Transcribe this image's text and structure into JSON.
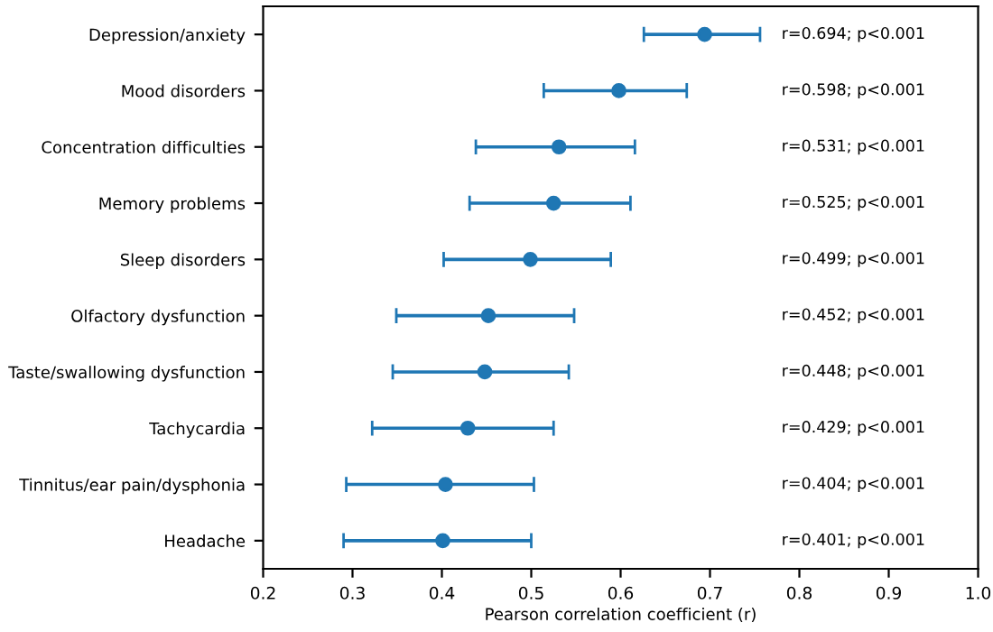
{
  "chart_data": {
    "type": "scatter",
    "orientation": "horizontal",
    "xlabel": "Pearson correlation coefficient (r)",
    "categories": [
      "Depression/anxiety",
      "Mood disorders",
      "Concentration difficulties",
      "Memory problems",
      "Sleep disorders",
      "Olfactory dysfunction",
      "Taste/swallowing dysfunction",
      "Tachycardia",
      "Tinnitus/ear pain/dysphonia",
      "Headache"
    ],
    "series": [
      {
        "color": "#1f77b4",
        "values": [
          0.694,
          0.598,
          0.531,
          0.525,
          0.499,
          0.452,
          0.448,
          0.429,
          0.404,
          0.401
        ],
        "errors": [
          [
            0.626,
            0.756
          ],
          [
            0.514,
            0.674
          ],
          [
            0.438,
            0.616
          ],
          [
            0.431,
            0.611
          ],
          [
            0.402,
            0.589
          ],
          [
            0.349,
            0.548
          ],
          [
            0.345,
            0.542
          ],
          [
            0.322,
            0.525
          ],
          [
            0.293,
            0.503
          ],
          [
            0.29,
            0.5
          ]
        ]
      }
    ],
    "annotations": [
      "r=0.694; p<0.001",
      "r=0.598; p<0.001",
      "r=0.531; p<0.001",
      "r=0.525; p<0.001",
      "r=0.499; p<0.001",
      "r=0.452; p<0.001",
      "r=0.448; p<0.001",
      "r=0.429; p<0.001",
      "r=0.404; p<0.001",
      "r=0.401; p<0.001"
    ],
    "xlim": [
      0.2,
      1.0
    ],
    "xticks": [
      0.2,
      0.3,
      0.4,
      0.5,
      0.6,
      0.7,
      0.8,
      0.9,
      {
        "value": 1.0,
        "label": "1.0"
      }
    ],
    "marker": "circle",
    "grid": false,
    "legend": false
  }
}
